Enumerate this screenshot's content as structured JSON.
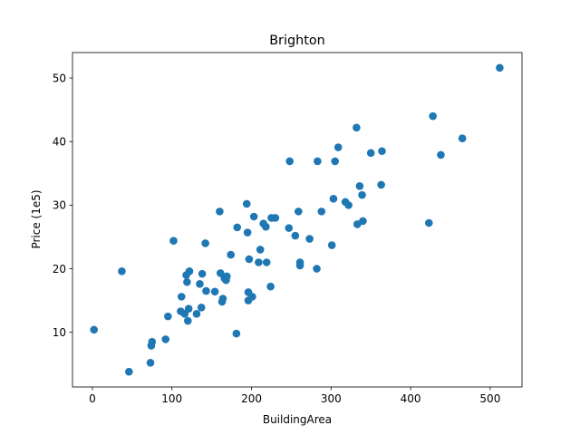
{
  "chart_data": {
    "type": "scatter",
    "title": "Brighton",
    "xlabel": "BuildingArea",
    "ylabel": "Price (1e5)",
    "xlim": [
      -25,
      540
    ],
    "ylim": [
      1.4,
      54
    ],
    "xticks": [
      0,
      100,
      200,
      300,
      400,
      500
    ],
    "yticks": [
      10,
      20,
      30,
      40,
      50
    ],
    "grid": false,
    "color": "#1f77b4",
    "points": [
      [
        2,
        10.4
      ],
      [
        37,
        19.6
      ],
      [
        46,
        3.8
      ],
      [
        73,
        5.2
      ],
      [
        74,
        7.9
      ],
      [
        75,
        8.5
      ],
      [
        92,
        8.9
      ],
      [
        95,
        12.5
      ],
      [
        102,
        24.4
      ],
      [
        111,
        13.3
      ],
      [
        112,
        15.6
      ],
      [
        116,
        12.9
      ],
      [
        118,
        19
      ],
      [
        119,
        17.9
      ],
      [
        120,
        11.8
      ],
      [
        121,
        13.7
      ],
      [
        122,
        19.6
      ],
      [
        131,
        12.9
      ],
      [
        135,
        17.6
      ],
      [
        137,
        13.9
      ],
      [
        138,
        19.2
      ],
      [
        142,
        24
      ],
      [
        143,
        16.5
      ],
      [
        154,
        16.4
      ],
      [
        160,
        29
      ],
      [
        161,
        19.3
      ],
      [
        163,
        14.8
      ],
      [
        164,
        15.3
      ],
      [
        166,
        18.5
      ],
      [
        168,
        18.2
      ],
      [
        169,
        18.8
      ],
      [
        174,
        22.2
      ],
      [
        181,
        9.8
      ],
      [
        182,
        26.5
      ],
      [
        194,
        30.2
      ],
      [
        195,
        25.7
      ],
      [
        196,
        15
      ],
      [
        196,
        16.3
      ],
      [
        197,
        21.5
      ],
      [
        201,
        15.6
      ],
      [
        203,
        28.2
      ],
      [
        209,
        21
      ],
      [
        211,
        23
      ],
      [
        215,
        27.1
      ],
      [
        218,
        26.6
      ],
      [
        219,
        21
      ],
      [
        224,
        17.2
      ],
      [
        225,
        28
      ],
      [
        230,
        28
      ],
      [
        247,
        26.4
      ],
      [
        248,
        36.9
      ],
      [
        255,
        25.2
      ],
      [
        259,
        29
      ],
      [
        261,
        20.5
      ],
      [
        261,
        21
      ],
      [
        273,
        24.7
      ],
      [
        282,
        20
      ],
      [
        283,
        36.9
      ],
      [
        288,
        29
      ],
      [
        301,
        23.7
      ],
      [
        303,
        31
      ],
      [
        305,
        36.9
      ],
      [
        309,
        39.1
      ],
      [
        318,
        30.5
      ],
      [
        322,
        30
      ],
      [
        332,
        42.2
      ],
      [
        333,
        27
      ],
      [
        336,
        33
      ],
      [
        339,
        31.6
      ],
      [
        340,
        27.5
      ],
      [
        350,
        38.2
      ],
      [
        363,
        33.2
      ],
      [
        364,
        38.5
      ],
      [
        423,
        27.2
      ],
      [
        428,
        44
      ],
      [
        438,
        37.9
      ],
      [
        465,
        40.5
      ],
      [
        512,
        51.6
      ]
    ]
  }
}
